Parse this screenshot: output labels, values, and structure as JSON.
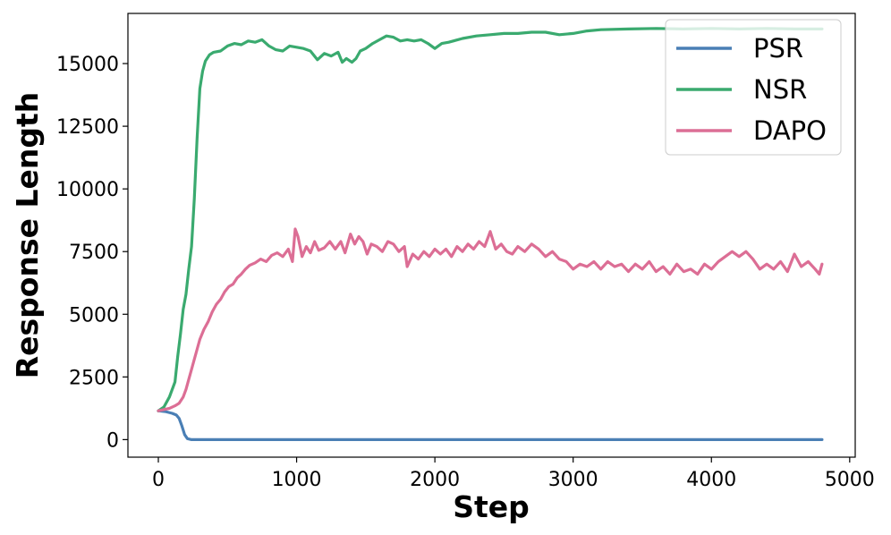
{
  "chart_data": {
    "type": "line",
    "title": "",
    "xlabel": "Step",
    "ylabel": "Response Length",
    "xlim": [
      -220,
      5040
    ],
    "ylim": [
      -700,
      17000
    ],
    "xticks": [
      0,
      1000,
      2000,
      3000,
      4000,
      5000
    ],
    "xtick_labels": [
      "0",
      "1000",
      "2000",
      "3000",
      "4000",
      "5000"
    ],
    "yticks": [
      0,
      2500,
      5000,
      7500,
      10000,
      12500,
      15000
    ],
    "ytick_labels": [
      "0",
      "2500",
      "5000",
      "7500",
      "10000",
      "12500",
      "15000"
    ],
    "grid": false,
    "legend_position": "top-right",
    "series": [
      {
        "name": "PSR",
        "color": "#4a7fb5",
        "points": [
          [
            0,
            1150
          ],
          [
            50,
            1120
          ],
          [
            100,
            1050
          ],
          [
            130,
            980
          ],
          [
            150,
            850
          ],
          [
            170,
            550
          ],
          [
            190,
            200
          ],
          [
            210,
            40
          ],
          [
            240,
            0
          ],
          [
            300,
            0
          ],
          [
            500,
            0
          ],
          [
            1000,
            0
          ],
          [
            2000,
            0
          ],
          [
            3000,
            0
          ],
          [
            4000,
            0
          ],
          [
            4800,
            0
          ]
        ]
      },
      {
        "name": "NSR",
        "color": "#3aaa6f",
        "points": [
          [
            0,
            1150
          ],
          [
            40,
            1300
          ],
          [
            80,
            1700
          ],
          [
            120,
            2300
          ],
          [
            140,
            3300
          ],
          [
            160,
            4200
          ],
          [
            180,
            5200
          ],
          [
            200,
            5800
          ],
          [
            220,
            6800
          ],
          [
            240,
            7700
          ],
          [
            260,
            9600
          ],
          [
            280,
            12000
          ],
          [
            300,
            14000
          ],
          [
            320,
            14700
          ],
          [
            340,
            15100
          ],
          [
            370,
            15350
          ],
          [
            400,
            15450
          ],
          [
            450,
            15500
          ],
          [
            500,
            15700
          ],
          [
            550,
            15800
          ],
          [
            600,
            15750
          ],
          [
            650,
            15900
          ],
          [
            700,
            15850
          ],
          [
            750,
            15950
          ],
          [
            800,
            15700
          ],
          [
            850,
            15550
          ],
          [
            900,
            15500
          ],
          [
            950,
            15700
          ],
          [
            1000,
            15650
          ],
          [
            1050,
            15600
          ],
          [
            1100,
            15500
          ],
          [
            1150,
            15150
          ],
          [
            1200,
            15400
          ],
          [
            1250,
            15300
          ],
          [
            1300,
            15450
          ],
          [
            1330,
            15050
          ],
          [
            1360,
            15200
          ],
          [
            1400,
            15050
          ],
          [
            1430,
            15200
          ],
          [
            1460,
            15500
          ],
          [
            1500,
            15600
          ],
          [
            1550,
            15800
          ],
          [
            1600,
            15950
          ],
          [
            1650,
            16100
          ],
          [
            1700,
            16050
          ],
          [
            1750,
            15900
          ],
          [
            1800,
            15950
          ],
          [
            1850,
            15900
          ],
          [
            1900,
            15950
          ],
          [
            1950,
            15800
          ],
          [
            2000,
            15600
          ],
          [
            2050,
            15800
          ],
          [
            2100,
            15850
          ],
          [
            2200,
            16000
          ],
          [
            2300,
            16100
          ],
          [
            2400,
            16150
          ],
          [
            2500,
            16200
          ],
          [
            2600,
            16200
          ],
          [
            2700,
            16250
          ],
          [
            2800,
            16250
          ],
          [
            2900,
            16150
          ],
          [
            3000,
            16200
          ],
          [
            3100,
            16300
          ],
          [
            3200,
            16350
          ],
          [
            3400,
            16380
          ],
          [
            3600,
            16400
          ],
          [
            3800,
            16380
          ],
          [
            4000,
            16400
          ],
          [
            4200,
            16380
          ],
          [
            4400,
            16400
          ],
          [
            4600,
            16380
          ],
          [
            4800,
            16380
          ]
        ]
      },
      {
        "name": "DAPO",
        "color": "#dc6e95",
        "points": [
          [
            0,
            1150
          ],
          [
            40,
            1200
          ],
          [
            80,
            1250
          ],
          [
            120,
            1350
          ],
          [
            150,
            1450
          ],
          [
            180,
            1700
          ],
          [
            200,
            2000
          ],
          [
            220,
            2400
          ],
          [
            240,
            2800
          ],
          [
            260,
            3200
          ],
          [
            280,
            3600
          ],
          [
            300,
            4000
          ],
          [
            330,
            4400
          ],
          [
            360,
            4700
          ],
          [
            390,
            5100
          ],
          [
            420,
            5400
          ],
          [
            450,
            5600
          ],
          [
            480,
            5900
          ],
          [
            510,
            6100
          ],
          [
            540,
            6200
          ],
          [
            570,
            6450
          ],
          [
            600,
            6600
          ],
          [
            630,
            6800
          ],
          [
            660,
            6950
          ],
          [
            700,
            7050
          ],
          [
            740,
            7200
          ],
          [
            780,
            7100
          ],
          [
            820,
            7350
          ],
          [
            860,
            7450
          ],
          [
            900,
            7300
          ],
          [
            940,
            7600
          ],
          [
            970,
            7100
          ],
          [
            990,
            8400
          ],
          [
            1010,
            8100
          ],
          [
            1040,
            7300
          ],
          [
            1070,
            7700
          ],
          [
            1100,
            7450
          ],
          [
            1130,
            7900
          ],
          [
            1160,
            7550
          ],
          [
            1200,
            7650
          ],
          [
            1240,
            7900
          ],
          [
            1280,
            7600
          ],
          [
            1320,
            7900
          ],
          [
            1350,
            7450
          ],
          [
            1390,
            8200
          ],
          [
            1420,
            7800
          ],
          [
            1450,
            8100
          ],
          [
            1480,
            7900
          ],
          [
            1510,
            7400
          ],
          [
            1540,
            7800
          ],
          [
            1580,
            7700
          ],
          [
            1620,
            7500
          ],
          [
            1660,
            7900
          ],
          [
            1700,
            7800
          ],
          [
            1740,
            7500
          ],
          [
            1780,
            7700
          ],
          [
            1800,
            6900
          ],
          [
            1840,
            7400
          ],
          [
            1880,
            7200
          ],
          [
            1920,
            7500
          ],
          [
            1960,
            7300
          ],
          [
            2000,
            7600
          ],
          [
            2040,
            7400
          ],
          [
            2080,
            7600
          ],
          [
            2120,
            7300
          ],
          [
            2160,
            7700
          ],
          [
            2200,
            7500
          ],
          [
            2240,
            7800
          ],
          [
            2280,
            7600
          ],
          [
            2320,
            7900
          ],
          [
            2360,
            7700
          ],
          [
            2400,
            8300
          ],
          [
            2440,
            7600
          ],
          [
            2480,
            7800
          ],
          [
            2520,
            7500
          ],
          [
            2560,
            7400
          ],
          [
            2600,
            7700
          ],
          [
            2650,
            7500
          ],
          [
            2700,
            7800
          ],
          [
            2750,
            7600
          ],
          [
            2800,
            7300
          ],
          [
            2850,
            7500
          ],
          [
            2900,
            7200
          ],
          [
            2950,
            7100
          ],
          [
            3000,
            6800
          ],
          [
            3050,
            7000
          ],
          [
            3100,
            6900
          ],
          [
            3150,
            7100
          ],
          [
            3200,
            6800
          ],
          [
            3250,
            7100
          ],
          [
            3300,
            6900
          ],
          [
            3350,
            7000
          ],
          [
            3400,
            6700
          ],
          [
            3450,
            7000
          ],
          [
            3500,
            6800
          ],
          [
            3550,
            7100
          ],
          [
            3600,
            6700
          ],
          [
            3650,
            6900
          ],
          [
            3700,
            6600
          ],
          [
            3750,
            7000
          ],
          [
            3800,
            6700
          ],
          [
            3850,
            6800
          ],
          [
            3900,
            6600
          ],
          [
            3950,
            7000
          ],
          [
            4000,
            6800
          ],
          [
            4050,
            7100
          ],
          [
            4100,
            7300
          ],
          [
            4150,
            7500
          ],
          [
            4200,
            7300
          ],
          [
            4250,
            7500
          ],
          [
            4300,
            7200
          ],
          [
            4350,
            6800
          ],
          [
            4400,
            7000
          ],
          [
            4450,
            6800
          ],
          [
            4500,
            7100
          ],
          [
            4550,
            6700
          ],
          [
            4600,
            7400
          ],
          [
            4650,
            6900
          ],
          [
            4700,
            7100
          ],
          [
            4750,
            6800
          ],
          [
            4780,
            6600
          ],
          [
            4800,
            7000
          ]
        ]
      }
    ]
  }
}
